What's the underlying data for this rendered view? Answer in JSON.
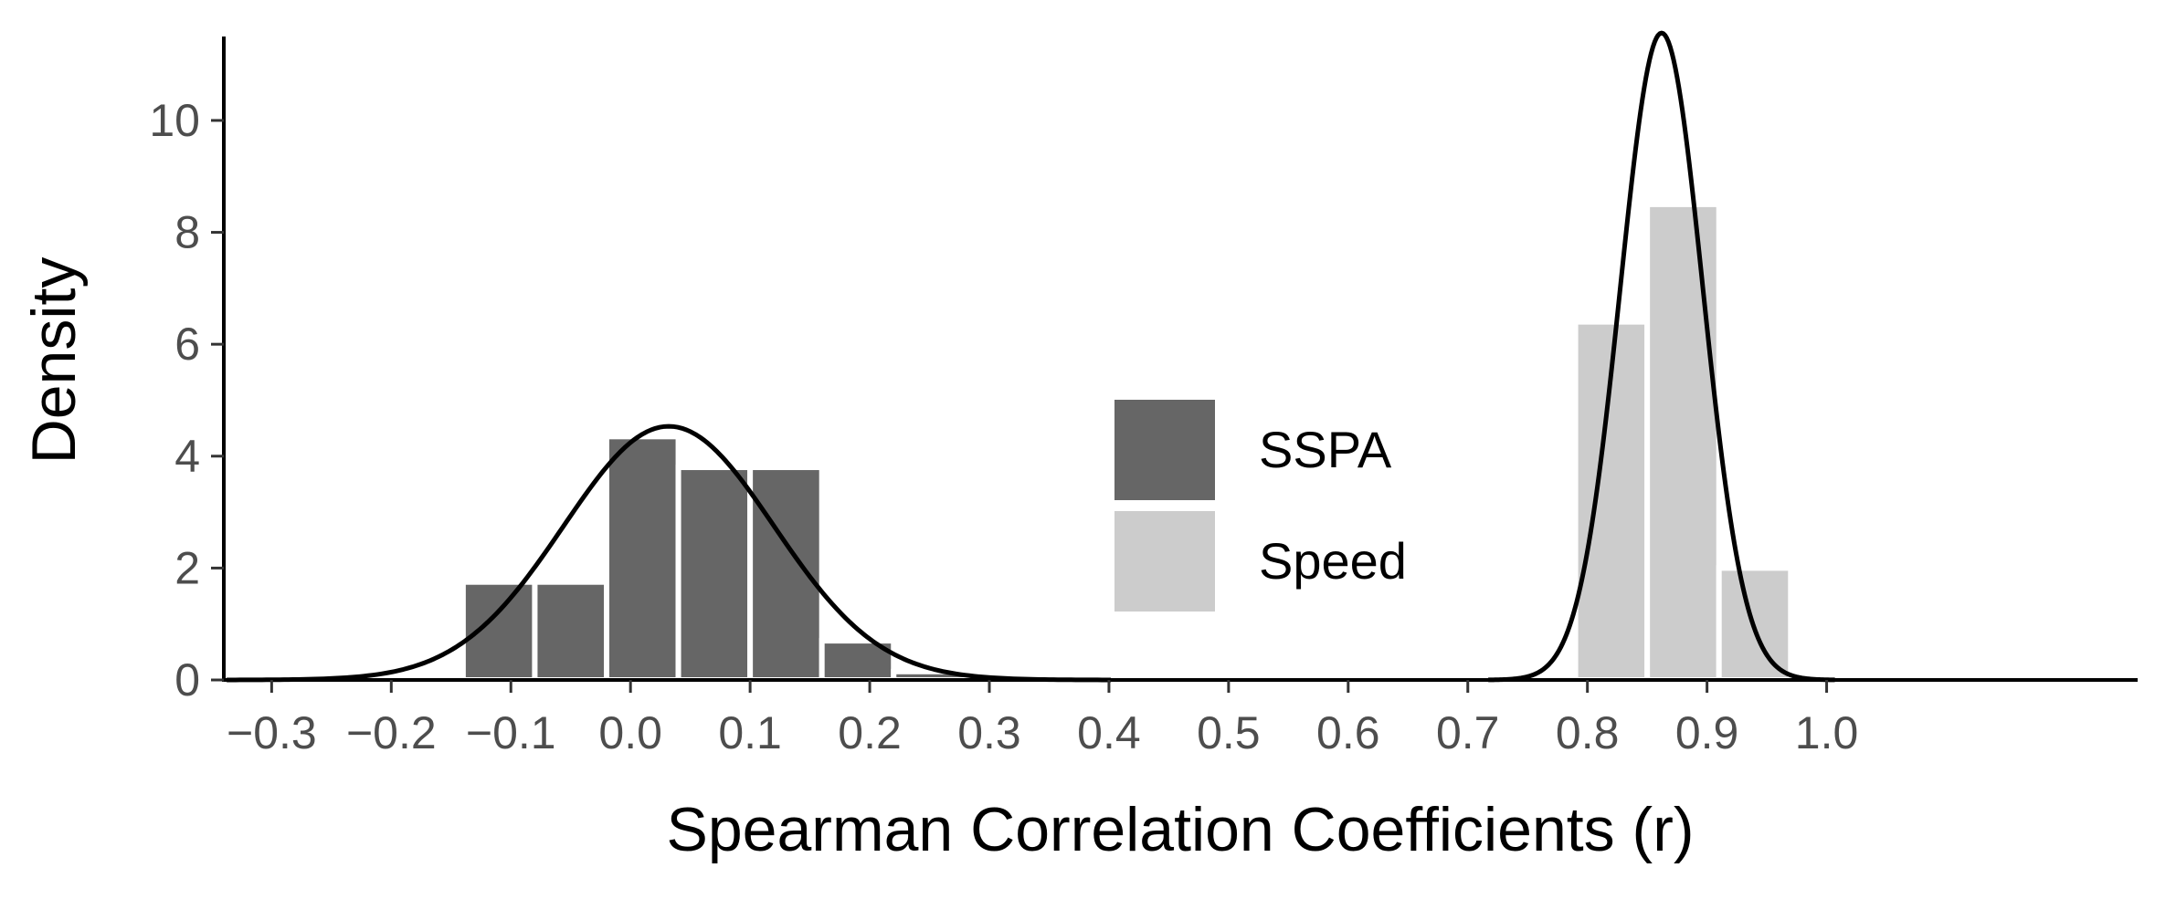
{
  "chart_data": {
    "type": "bar",
    "xlabel": "Spearman Correlation Coefficients (r)",
    "ylabel": "Density",
    "xlim": [
      -0.34,
      1.26
    ],
    "ylim": [
      0,
      11.5
    ],
    "x_ticks": [
      {
        "value": -0.3,
        "label": "−0.3"
      },
      {
        "value": -0.2,
        "label": "−0.2"
      },
      {
        "value": -0.1,
        "label": "−0.1"
      },
      {
        "value": 0.0,
        "label": "0.0"
      },
      {
        "value": 0.1,
        "label": "0.1"
      },
      {
        "value": 0.2,
        "label": "0.2"
      },
      {
        "value": 0.3,
        "label": "0.3"
      },
      {
        "value": 0.4,
        "label": "0.4"
      },
      {
        "value": 0.5,
        "label": "0.5"
      },
      {
        "value": 0.6,
        "label": "0.6"
      },
      {
        "value": 0.7,
        "label": "0.7"
      },
      {
        "value": 0.8,
        "label": "0.8"
      },
      {
        "value": 0.9,
        "label": "0.9"
      },
      {
        "value": 1.0,
        "label": "1.0"
      }
    ],
    "y_ticks": [
      {
        "value": 0,
        "label": "0"
      },
      {
        "value": 2,
        "label": "2"
      },
      {
        "value": 4,
        "label": "4"
      },
      {
        "value": 6,
        "label": "6"
      },
      {
        "value": 8,
        "label": "8"
      },
      {
        "value": 10,
        "label": "10"
      }
    ],
    "grid": false,
    "legend_position": "center",
    "series": [
      {
        "name": "SSPA",
        "color": "#666666",
        "bin_width": 0.06,
        "bins": [
          {
            "x0": -0.14,
            "x1": -0.08,
            "density": 1.75
          },
          {
            "x0": -0.08,
            "x1": -0.02,
            "density": 1.75
          },
          {
            "x0": -0.02,
            "x1": 0.04,
            "density": 4.35
          },
          {
            "x0": 0.04,
            "x1": 0.1,
            "density": 3.8
          },
          {
            "x0": 0.1,
            "x1": 0.16,
            "density": 3.8
          },
          {
            "x0": 0.16,
            "x1": 0.22,
            "density": 0.7
          },
          {
            "x0": 0.22,
            "x1": 0.28,
            "density": 0.15
          }
        ],
        "density_curve": {
          "mean": 0.032,
          "sd": 0.088
        }
      },
      {
        "name": "Speed",
        "color": "#cccccc",
        "bin_width": 0.06,
        "bins": [
          {
            "x0": 0.79,
            "x1": 0.85,
            "density": 6.4
          },
          {
            "x0": 0.85,
            "x1": 0.91,
            "density": 8.5
          },
          {
            "x0": 0.91,
            "x1": 0.97,
            "density": 2.0
          }
        ],
        "density_curve": {
          "mean": 0.862,
          "sd": 0.0345
        }
      }
    ]
  }
}
